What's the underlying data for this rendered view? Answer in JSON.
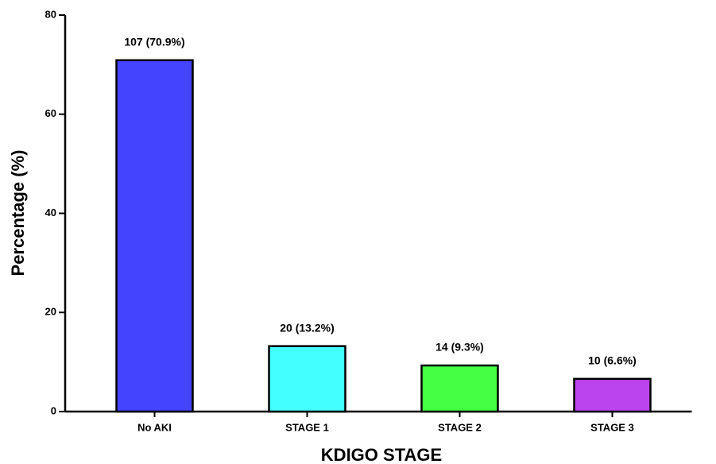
{
  "chart_data": {
    "type": "bar",
    "x_label": "KDIGO STAGE",
    "y_label": "Percentage (%)",
    "categories": [
      "No AKI",
      "STAGE 1",
      "STAGE 2",
      "STAGE 3"
    ],
    "values": [
      70.9,
      13.2,
      9.3,
      6.6
    ],
    "value_labels": [
      "107 (70.9%)",
      "20 (13.2%)",
      "14 (9.3%)",
      "10 (6.6%)"
    ],
    "colors": [
      "#4444ff",
      "#44ffff",
      "#44ff44",
      "#bb44ee"
    ],
    "ylim": [
      0,
      80
    ],
    "yticks": [
      0,
      20,
      40,
      60,
      80
    ],
    "grid": false
  }
}
